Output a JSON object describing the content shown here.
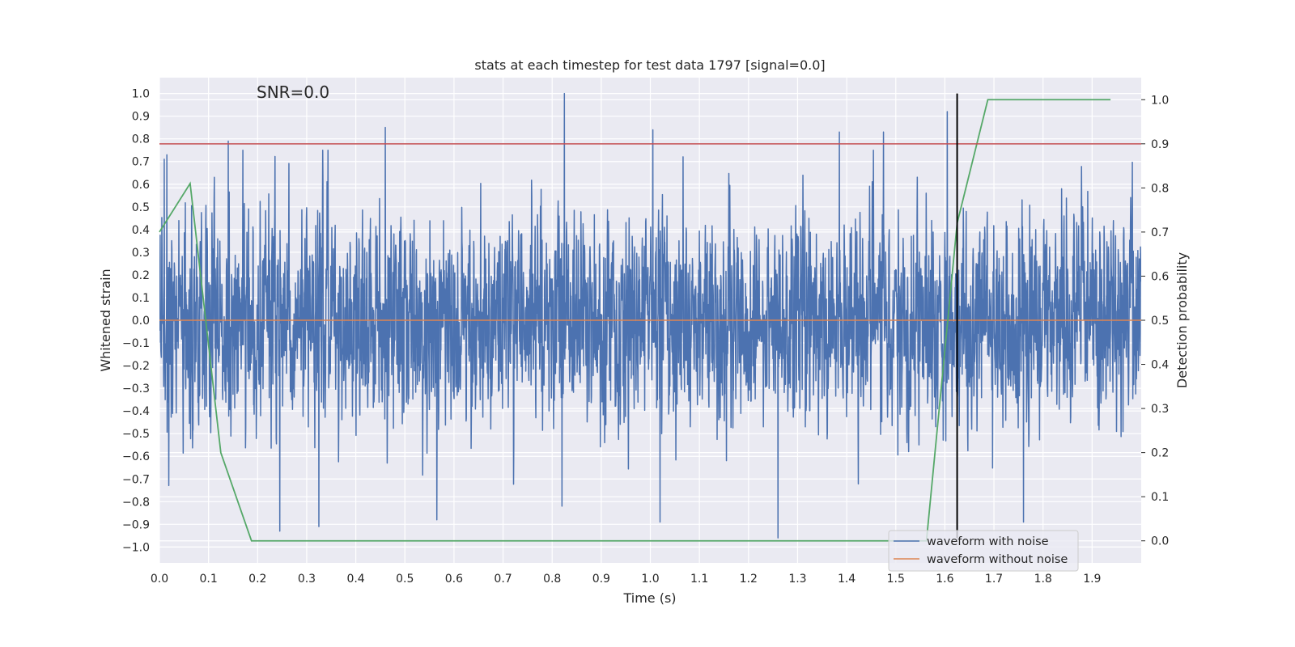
{
  "chart_data": {
    "type": "line",
    "title": "stats at each timestep for test data 1797 [signal=0.0]",
    "annotation": "SNR=0.0",
    "xlabel": "Time (s)",
    "ylabel": "Whitened strain",
    "ylabel_right": "Detection probability",
    "xlim": [
      0.0,
      2.0
    ],
    "ylim": [
      -1.07,
      1.07
    ],
    "ylim_right": [
      -0.05,
      1.05
    ],
    "x_ticks": [
      0.0,
      0.1,
      0.2,
      0.3,
      0.4,
      0.5,
      0.6,
      0.7,
      0.8,
      0.9,
      1.0,
      1.1,
      1.2,
      1.3,
      1.4,
      1.5,
      1.6,
      1.7,
      1.8,
      1.9
    ],
    "y_ticks": [
      -1.0,
      -0.9,
      -0.8,
      -0.7,
      -0.6,
      -0.5,
      -0.4,
      -0.3,
      -0.2,
      -0.1,
      0.0,
      0.1,
      0.2,
      0.3,
      0.4,
      0.5,
      0.6,
      0.7,
      0.8,
      0.9,
      1.0
    ],
    "y_ticks_right": [
      0.0,
      0.1,
      0.2,
      0.3,
      0.4,
      0.5,
      0.6,
      0.7,
      0.8,
      0.9,
      1.0
    ],
    "grid": true,
    "legend_position": "lower-right",
    "series": [
      {
        "name": "waveform with noise",
        "color": "#4c72b0",
        "axis": "left",
        "description": "dense noise trace, sampled at ~2048 Hz",
        "n_points": 4096,
        "x_range": [
          0.0,
          2.0
        ],
        "approx_std": 0.3,
        "notable_peaks": [
          {
            "x": 0.01,
            "y": 0.71
          },
          {
            "x": 0.015,
            "y": 0.73
          },
          {
            "x": 0.14,
            "y": 0.79
          },
          {
            "x": 0.46,
            "y": 0.85
          },
          {
            "x": 0.825,
            "y": 1.0
          },
          {
            "x": 1.005,
            "y": 0.84
          },
          {
            "x": 1.385,
            "y": 0.83
          },
          {
            "x": 1.475,
            "y": 0.83
          },
          {
            "x": 1.605,
            "y": 0.92
          },
          {
            "x": 0.245,
            "y": -0.93
          },
          {
            "x": 0.325,
            "y": -0.91
          },
          {
            "x": 0.565,
            "y": -0.88
          },
          {
            "x": 0.82,
            "y": -0.82
          },
          {
            "x": 1.02,
            "y": -0.89
          },
          {
            "x": 1.26,
            "y": -0.96
          },
          {
            "x": 1.76,
            "y": -0.89
          }
        ]
      },
      {
        "name": "waveform without noise",
        "color": "#dd8452",
        "axis": "left",
        "x": [
          0.0,
          2.0
        ],
        "y": [
          0.0,
          0.0
        ]
      },
      {
        "color": "#55a868",
        "axis": "right",
        "x": [
          0.0,
          0.0625,
          0.125,
          0.1875,
          1.5625,
          1.625,
          1.6875,
          1.9375
        ],
        "y": [
          0.7,
          0.81,
          0.2,
          0.0,
          0.0,
          0.72,
          1.0,
          1.0
        ]
      }
    ],
    "reference_lines": [
      {
        "orientation": "horizontal",
        "axis": "right",
        "y": 0.9,
        "color": "#c44e52"
      },
      {
        "orientation": "vertical",
        "x": 1.625,
        "y_range": [
          -0.96,
          1.0
        ],
        "color": "#000000"
      }
    ]
  }
}
